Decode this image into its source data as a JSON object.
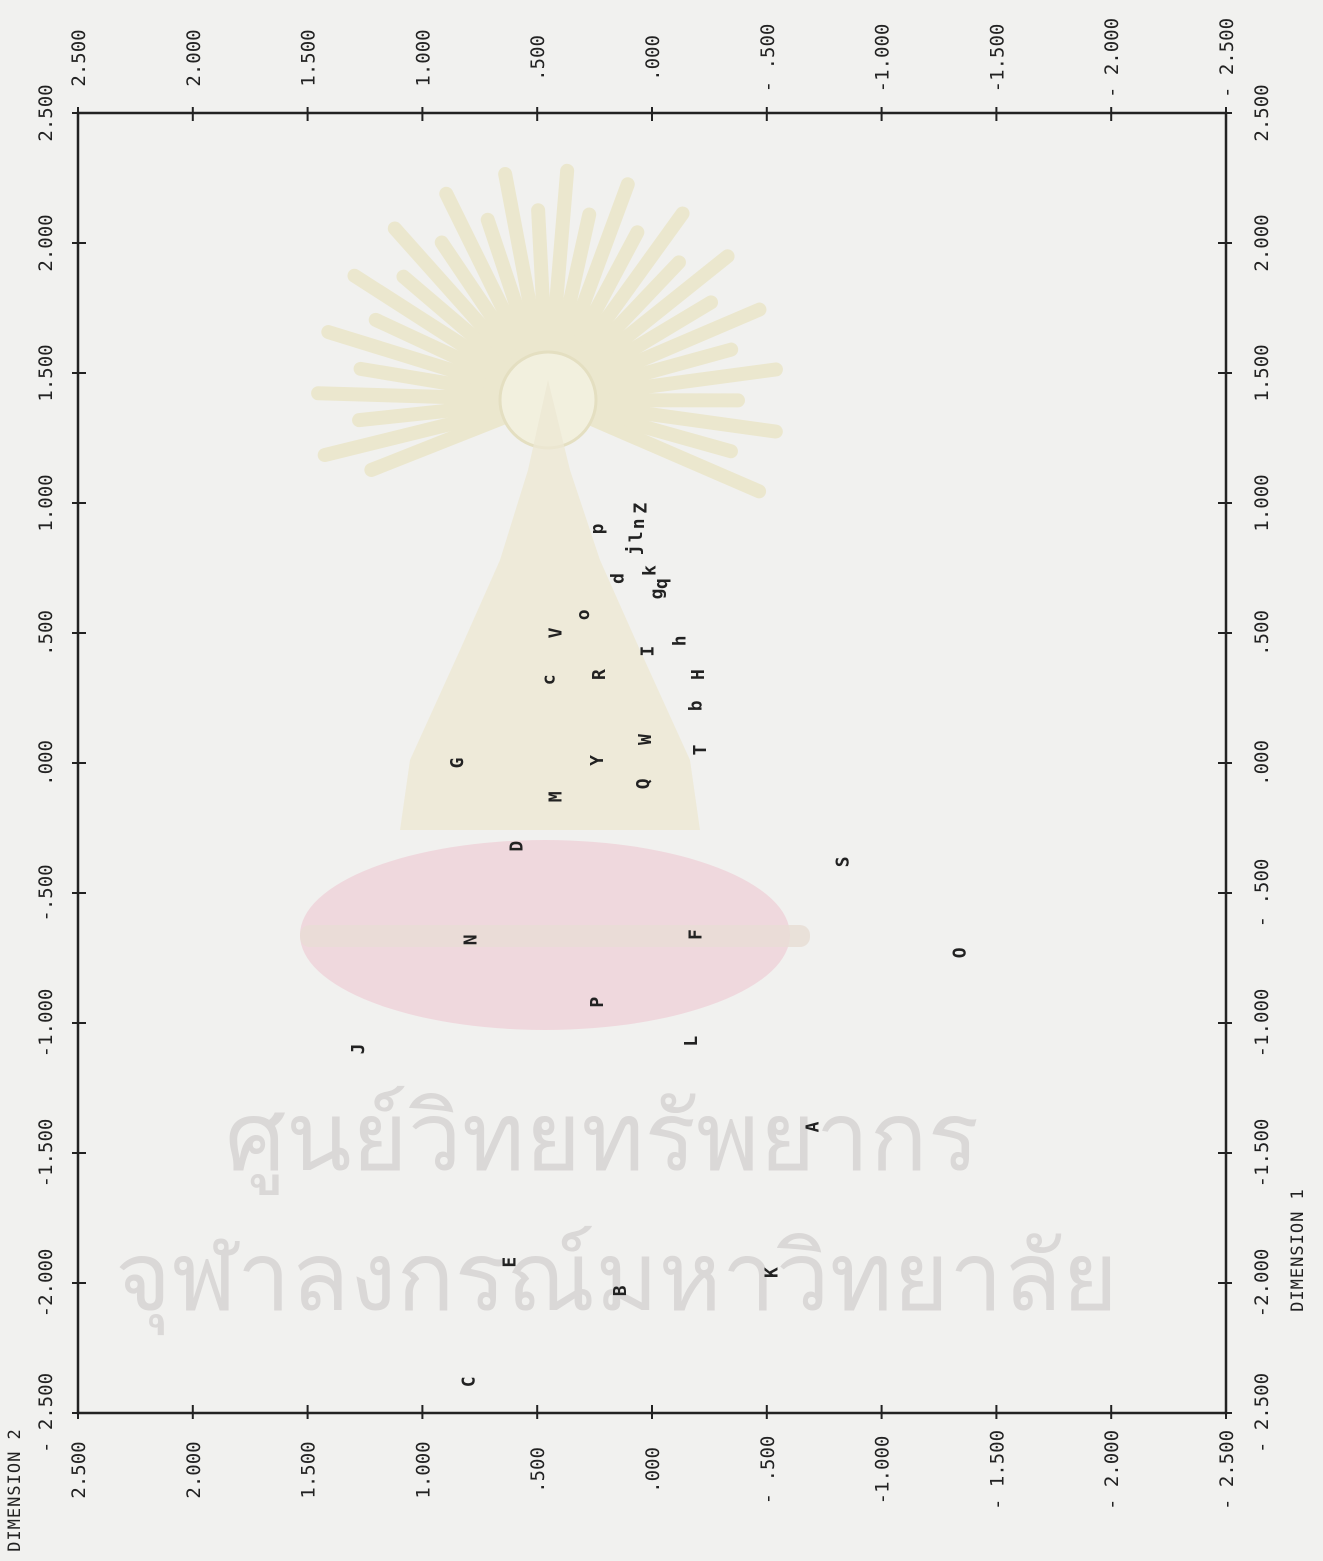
{
  "chart_data": {
    "type": "scatter",
    "title": "",
    "xlabel": "DIMENSION 1",
    "ylabel": "DIMENSION 2",
    "xlim": [
      -2.5,
      2.5
    ],
    "ylim": [
      -2.5,
      2.5
    ],
    "grid": false,
    "x_ticks": [
      2.5,
      2.0,
      1.5,
      1.0,
      0.5,
      0.0,
      -0.5,
      -1.0,
      -1.5,
      -2.0,
      -2.5
    ],
    "y_ticks": [
      2.5,
      2.0,
      1.5,
      1.0,
      0.5,
      0.0,
      -0.5,
      -1.0,
      -1.5,
      -2.0,
      -2.5
    ],
    "x_tick_labels_left": [
      "2.500",
      "2.000",
      "1.500",
      "1.000",
      ".500",
      ".000",
      "-.500",
      "-1.000",
      "-1.500",
      "-2.000",
      "- 2.500"
    ],
    "x_tick_labels_right": [
      "2.500",
      "2.000",
      "1.500",
      "1.000",
      ".500",
      ".000",
      "- .500",
      "-1.000",
      "-1.500",
      "-2.000",
      "- 2.500"
    ],
    "y_tick_labels_top": [
      "2.500",
      "2.000",
      "1.500",
      "1.000",
      ".500",
      ".000",
      "- .500",
      "-1.000",
      "-1.500",
      "- 2.000",
      "- 2.500"
    ],
    "y_tick_labels_bottom": [
      "2.500",
      "2.000",
      "1.500",
      "1.000",
      ".500",
      ".000",
      "- .500",
      "-1.000",
      "- 1.500",
      "- 2.000",
      "- 2.500"
    ],
    "points": [
      {
        "label": "p",
        "x": 0.9,
        "y": 0.24
      },
      {
        "label": "Z",
        "x": 0.98,
        "y": 0.05
      },
      {
        "label": "n",
        "x": 0.92,
        "y": 0.06
      },
      {
        "label": "l",
        "x": 0.87,
        "y": 0.07
      },
      {
        "label": "j",
        "x": 0.82,
        "y": 0.08
      },
      {
        "label": "k",
        "x": 0.74,
        "y": 0.01
      },
      {
        "label": "d",
        "x": 0.71,
        "y": 0.15
      },
      {
        "label": "q",
        "x": 0.69,
        "y": -0.04
      },
      {
        "label": "g",
        "x": 0.65,
        "y": -0.02
      },
      {
        "label": "o",
        "x": 0.57,
        "y": 0.3
      },
      {
        "label": "h",
        "x": 0.47,
        "y": -0.12
      },
      {
        "label": "V",
        "x": 0.5,
        "y": 0.42
      },
      {
        "label": "I",
        "x": 0.43,
        "y": 0.02
      },
      {
        "label": "H",
        "x": 0.34,
        "y": -0.2
      },
      {
        "label": "R",
        "x": 0.34,
        "y": 0.23
      },
      {
        "label": "c",
        "x": 0.32,
        "y": 0.45
      },
      {
        "label": "b",
        "x": 0.22,
        "y": -0.19
      },
      {
        "label": "W",
        "x": 0.09,
        "y": 0.03
      },
      {
        "label": "T",
        "x": 0.05,
        "y": -0.21
      },
      {
        "label": "Y",
        "x": 0.01,
        "y": 0.24
      },
      {
        "label": "G",
        "x": 0.0,
        "y": 0.85
      },
      {
        "label": "Q",
        "x": -0.08,
        "y": 0.04
      },
      {
        "label": "M",
        "x": -0.13,
        "y": 0.42
      },
      {
        "label": "D",
        "x": -0.32,
        "y": 0.59
      },
      {
        "label": "S",
        "x": -0.38,
        "y": -0.83
      },
      {
        "label": "F",
        "x": -0.66,
        "y": -0.19
      },
      {
        "label": "N",
        "x": -0.68,
        "y": 0.79
      },
      {
        "label": "O",
        "x": -0.73,
        "y": -1.34
      },
      {
        "label": "P",
        "x": -0.92,
        "y": 0.24
      },
      {
        "label": "L",
        "x": -1.07,
        "y": -0.17
      },
      {
        "label": "J",
        "x": -1.1,
        "y": 1.28
      },
      {
        "label": "A",
        "x": -1.4,
        "y": -0.7
      },
      {
        "label": "K",
        "x": -1.96,
        "y": -0.52
      },
      {
        "label": "E",
        "x": -1.92,
        "y": 0.62
      },
      {
        "label": "B",
        "x": -2.03,
        "y": 0.14
      },
      {
        "label": "C",
        "x": -2.38,
        "y": 0.8
      }
    ]
  },
  "watermark": {
    "line1": "ศูนย์วิทยทรัพยากร",
    "line2": "จุฬาลงกรณ์มหาวิทยาลัย",
    "emblem": "chulalongkorn-emblem"
  },
  "colors": {
    "ink": "#222222",
    "paper": "#f1f1ef",
    "emblem_rays": "#ebe6c9",
    "emblem_cushion": "#efc9d3"
  }
}
